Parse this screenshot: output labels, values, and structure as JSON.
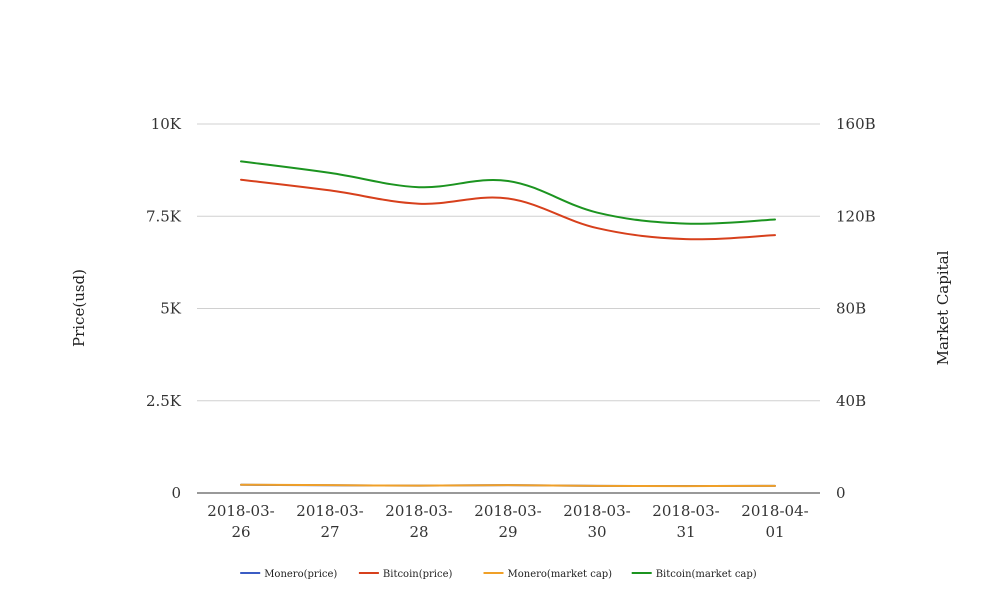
{
  "chart_data": {
    "type": "line",
    "x": [
      "2018-03-26",
      "2018-03-27",
      "2018-03-28",
      "2018-03-29",
      "2018-03-30",
      "2018-03-31",
      "2018-04-01"
    ],
    "x_tick_labels": [
      [
        "2018-03-",
        "26"
      ],
      [
        "2018-03-",
        "27"
      ],
      [
        "2018-03-",
        "28"
      ],
      [
        "2018-03-",
        "29"
      ],
      [
        "2018-03-",
        "30"
      ],
      [
        "2018-03-",
        "31"
      ],
      [
        "2018-04-",
        "01"
      ]
    ],
    "ylabel_left": "Price(usd)",
    "ylabel_right": "Market Capital",
    "ylim_left": [
      0,
      10000
    ],
    "ylim_right": [
      0,
      160000000000
    ],
    "yticks_left": [
      {
        "value": 0,
        "label": "0"
      },
      {
        "value": 2500,
        "label": "2.5K"
      },
      {
        "value": 5000,
        "label": "5K"
      },
      {
        "value": 7500,
        "label": "7.5K"
      },
      {
        "value": 10000,
        "label": "10K"
      }
    ],
    "yticks_right": [
      {
        "value": 0,
        "label": "0"
      },
      {
        "value": 40000000000,
        "label": "40B"
      },
      {
        "value": 80000000000,
        "label": "80B"
      },
      {
        "value": 120000000000,
        "label": "120B"
      },
      {
        "value": 160000000000,
        "label": "160B"
      }
    ],
    "grid": true,
    "legend_position": "bottom",
    "series": [
      {
        "name": "Monero(price)",
        "axis": "left",
        "color": "#3b5cc4",
        "values": [
          222,
          210,
          199,
          214,
          192,
          190,
          193
        ]
      },
      {
        "name": "Bitcoin(price)",
        "axis": "left",
        "color": "#d7401c",
        "values": [
          8490,
          8200,
          7840,
          7980,
          7180,
          6880,
          6990
        ]
      },
      {
        "name": "Monero(market cap)",
        "axis": "right",
        "color": "#f0a028",
        "values": [
          3600000000,
          3400000000,
          3200000000,
          3400000000,
          3100000000,
          3000000000,
          3100000000
        ]
      },
      {
        "name": "Bitcoin(market cap)",
        "axis": "right",
        "color": "#1c9420",
        "values": [
          143800000000,
          138800000000,
          132600000000,
          135300000000,
          121600000000,
          116800000000,
          118600000000
        ]
      }
    ]
  }
}
